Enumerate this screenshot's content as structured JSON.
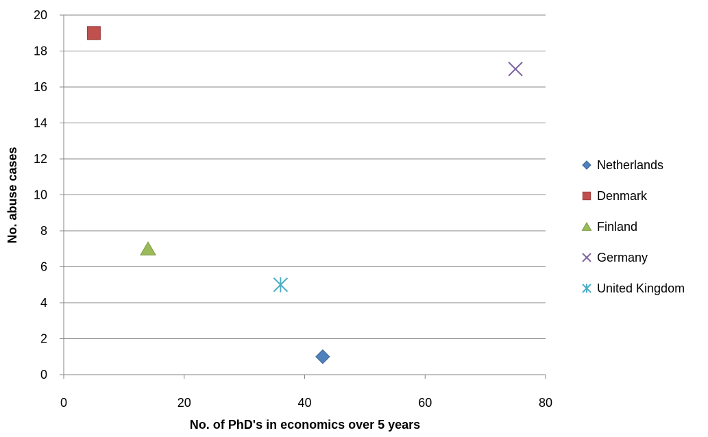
{
  "chart_data": {
    "type": "scatter",
    "xlabel": "No. of PhD's in economics over 5 years",
    "ylabel": "No. abuse cases",
    "xlim": [
      0,
      80
    ],
    "ylim": [
      0,
      20
    ],
    "x_ticks": [
      0,
      20,
      40,
      60,
      80
    ],
    "y_ticks": [
      0,
      2,
      4,
      6,
      8,
      10,
      12,
      14,
      16,
      18,
      20
    ],
    "grid": "horizontal",
    "legend_position": "right",
    "series": [
      {
        "name": "Netherlands",
        "x": 43,
        "y": 1,
        "marker": "diamond",
        "color": "#4F81BD"
      },
      {
        "name": "Denmark",
        "x": 5,
        "y": 19,
        "marker": "square",
        "color": "#C0504D"
      },
      {
        "name": "Finland",
        "x": 14,
        "y": 7,
        "marker": "triangle",
        "color": "#9BBB59"
      },
      {
        "name": "Germany",
        "x": 75,
        "y": 17,
        "marker": "x",
        "color": "#8064A2"
      },
      {
        "name": "United Kingdom",
        "x": 36,
        "y": 5,
        "marker": "star",
        "color": "#4BACC6"
      }
    ]
  }
}
